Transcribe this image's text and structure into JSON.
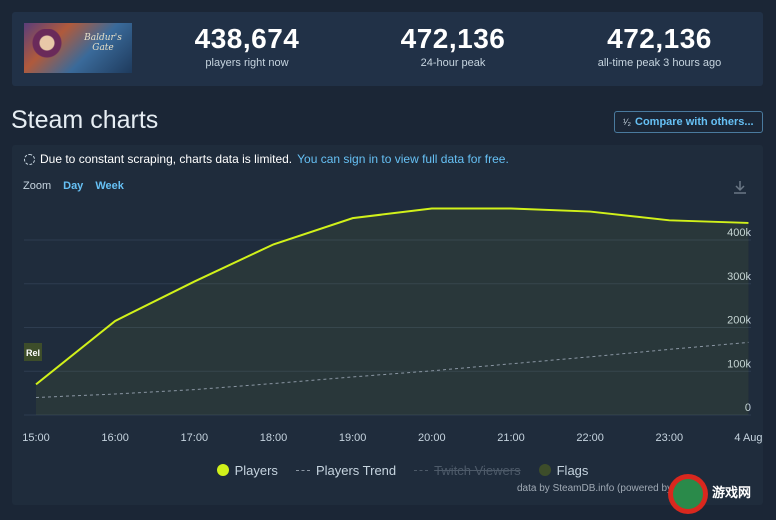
{
  "game": {
    "thumbnail_logo": "Baldur's Gate"
  },
  "stats": [
    {
      "value": "438,674",
      "label": "players right now"
    },
    {
      "value": "472,136",
      "label": "24-hour peak"
    },
    {
      "value": "472,136",
      "label": "all-time peak 3 hours ago"
    }
  ],
  "section": {
    "title": "Steam charts",
    "compare_label": "Compare with others...",
    "compare_icon": "¹⁄₂"
  },
  "notice": {
    "text": "Due to constant scraping, charts data is limited.",
    "link": "You can sign in to view full data for free."
  },
  "zoom": {
    "label": "Zoom",
    "day": "Day",
    "week": "Week"
  },
  "legend": {
    "players": "Players",
    "trend": "Players Trend",
    "twitch": "Twitch Viewers",
    "flags": "Flags"
  },
  "credit": "data by SteamDB.info (powered by",
  "watermark": "游戏网",
  "colors": {
    "players": "#d1f11a",
    "trend": "#8a96a3",
    "flags": "#3d4d2a",
    "accent": "#66c0f4"
  },
  "chart_data": {
    "type": "line",
    "x": [
      "15:00",
      "16:00",
      "17:00",
      "18:00",
      "19:00",
      "20:00",
      "21:00",
      "22:00",
      "23:00",
      "4 Aug"
    ],
    "series": [
      {
        "name": "Players",
        "values": [
          70000,
          215000,
          305000,
          390000,
          450000,
          472000,
          472000,
          465000,
          445000,
          439000
        ]
      },
      {
        "name": "Players Trend",
        "values": [
          40000,
          48000,
          58000,
          72000,
          87000,
          101000,
          117000,
          133000,
          150000,
          166000
        ]
      }
    ],
    "ylim": [
      0,
      480000
    ],
    "y_ticks": [
      "0",
      "100k",
      "200k",
      "300k",
      "400k"
    ],
    "flags": [
      {
        "label": "Rel"
      }
    ],
    "grid": true
  }
}
